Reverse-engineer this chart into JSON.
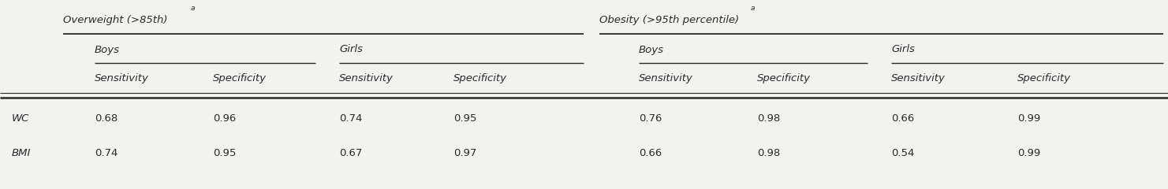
{
  "col0_labels": [
    "WC",
    "BMI"
  ],
  "overweight_boys_sensitivity": [
    "0.68",
    "0.74"
  ],
  "overweight_boys_specificity": [
    "0.96",
    "0.95"
  ],
  "overweight_girls_sensitivity": [
    "0.74",
    "0.67"
  ],
  "overweight_girls_specificity": [
    "0.95",
    "0.97"
  ],
  "obesity_boys_sensitivity": [
    "0.76",
    "0.66"
  ],
  "obesity_boys_specificity": [
    "0.98",
    "0.98"
  ],
  "obesity_girls_sensitivity": [
    "0.66",
    "0.54"
  ],
  "obesity_girls_specificity": [
    "0.99",
    "0.99"
  ],
  "group1_label": "Overweight (>85th)",
  "group1_super": "a",
  "group2_label": "Obesity (>95th percentile)",
  "group2_super": "a",
  "boys_label": "Boys",
  "girls_label": "Girls",
  "sensitivity_label": "Sensitivity",
  "specificity_label": "Specificity",
  "bg_color": "#f2f2ee",
  "text_color": "#2a2a2a",
  "font_size": 9.5
}
